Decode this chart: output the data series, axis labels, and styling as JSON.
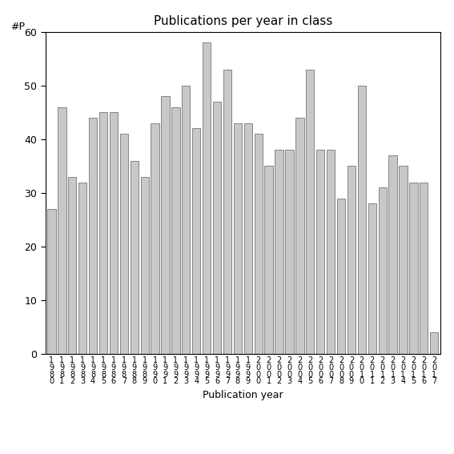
{
  "title": "Publications per year in class",
  "xlabel": "Publication year",
  "ylabel": "#P",
  "bar_color": "#c8c8c8",
  "bar_edgecolor": "#606060",
  "years": [
    1980,
    1981,
    1982,
    1983,
    1984,
    1985,
    1986,
    1987,
    1988,
    1989,
    1990,
    1991,
    1992,
    1993,
    1994,
    1995,
    1996,
    1997,
    1998,
    1999,
    2000,
    2001,
    2002,
    2003,
    2004,
    2005,
    2006,
    2007,
    2008,
    2009,
    2010,
    2011,
    2012,
    2013,
    2014,
    2015,
    2016,
    2017
  ],
  "values": [
    27,
    46,
    33,
    32,
    44,
    45,
    45,
    41,
    36,
    33,
    43,
    48,
    46,
    50,
    42,
    58,
    47,
    53,
    43,
    43,
    41,
    35,
    38,
    38,
    44,
    53,
    38,
    38,
    29,
    35,
    50,
    28,
    31,
    37,
    35,
    32,
    32,
    4
  ],
  "ylim": [
    0,
    60
  ],
  "yticks": [
    0,
    10,
    20,
    30,
    40,
    50,
    60
  ],
  "figsize": [
    5.67,
    5.67
  ],
  "dpi": 100
}
